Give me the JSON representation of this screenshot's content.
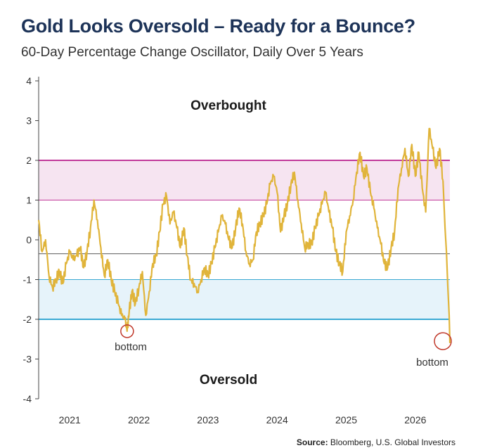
{
  "header": {
    "title": "Gold Looks Oversold – Ready for a Bounce?",
    "subtitle": "60-Day Percentage Change Oscillator, Daily Over 5 Years"
  },
  "footer": {
    "source_label": "Source:",
    "source_text": "Bloomberg, U.S. Global Investors"
  },
  "colors": {
    "series": "#e0b43a",
    "overbought_band_fill": "#f6e4f1",
    "overbought_line": "#c2399a",
    "oversold_band_fill": "#e6f3fa",
    "oversold_line": "#3aa9d3",
    "mean_line": "#555555",
    "marker": "#c0392b",
    "title": "#1d3358"
  },
  "chart_data": {
    "type": "line",
    "title": "Gold Looks Oversold – Ready for a Bounce?",
    "subtitle": "60-Day Percentage Change Oscillator, Daily Over 5 Years",
    "xlabel": "",
    "ylabel": "",
    "xlim": [
      2020.55,
      2026.5
    ],
    "ylim": [
      -4,
      4
    ],
    "x_ticks": [
      2021,
      2022,
      2023,
      2024,
      2025,
      2026
    ],
    "x_tick_labels": [
      "2021",
      "2022",
      "2023",
      "2024",
      "2025",
      "2026"
    ],
    "y_ticks": [
      -4,
      -3,
      -2,
      -1,
      0,
      1,
      2,
      3,
      4
    ],
    "y_tick_labels": [
      "-4",
      "-3",
      "-2",
      "-1",
      "0",
      "1",
      "2",
      "3",
      "4"
    ],
    "grid": false,
    "bands": [
      {
        "label": "Overbought",
        "from": 1,
        "to": 2
      },
      {
        "label": "Oversold",
        "from": -2,
        "to": -1
      }
    ],
    "reference_line": -0.35,
    "annotations": [
      {
        "text": "Overbought",
        "x": 2021.8,
        "y": 3.3
      },
      {
        "text": "Oversold",
        "x": 2022.75,
        "y": -3.5
      },
      {
        "text": "bottom",
        "x": 2021.83,
        "y": -2.3
      },
      {
        "text": "bottom",
        "x": 2026.35,
        "y": -2.55
      }
    ],
    "series": [
      {
        "x": [
          2020.55,
          2020.6,
          2020.65,
          2020.7,
          2020.75,
          2020.8,
          2020.85,
          2020.9,
          2020.95,
          2021.0,
          2021.05,
          2021.1,
          2021.15,
          2021.2,
          2021.25,
          2021.3,
          2021.35,
          2021.4,
          2021.45,
          2021.5,
          2021.55,
          2021.6,
          2021.65,
          2021.7,
          2021.75,
          2021.8,
          2021.83,
          2021.86,
          2021.9,
          2021.95,
          2022.0,
          2022.05,
          2022.1,
          2022.15,
          2022.2,
          2022.25,
          2022.3,
          2022.35,
          2022.4,
          2022.45,
          2022.5,
          2022.55,
          2022.6,
          2022.65,
          2022.7,
          2022.75,
          2022.8,
          2022.85,
          2022.9,
          2022.95,
          2023.0,
          2023.05,
          2023.1,
          2023.15,
          2023.2,
          2023.25,
          2023.3,
          2023.35,
          2023.4,
          2023.45,
          2023.5,
          2023.55,
          2023.6,
          2023.65,
          2023.7,
          2023.75,
          2023.8,
          2023.85,
          2023.9,
          2023.95,
          2024.0,
          2024.05,
          2024.1,
          2024.15,
          2024.2,
          2024.25,
          2024.3,
          2024.35,
          2024.4,
          2024.45,
          2024.5,
          2024.55,
          2024.6,
          2024.65,
          2024.7,
          2024.75,
          2024.8,
          2024.85,
          2024.9,
          2024.95,
          2025.0,
          2025.05,
          2025.1,
          2025.15,
          2025.2,
          2025.25,
          2025.3,
          2025.35,
          2025.4,
          2025.45,
          2025.5,
          2025.55,
          2025.6,
          2025.65,
          2025.7,
          2025.75,
          2025.8,
          2025.85,
          2025.9,
          2025.95,
          2026.0,
          2026.05,
          2026.1,
          2026.15,
          2026.2,
          2026.25,
          2026.3,
          2026.35,
          2026.4
        ],
        "y": [
          0.5,
          -0.3,
          0.0,
          -0.9,
          -1.2,
          -1.0,
          -0.8,
          -1.1,
          -0.6,
          -0.3,
          -0.5,
          -0.4,
          -0.2,
          -0.7,
          -0.3,
          0.3,
          1.0,
          0.5,
          -0.2,
          -0.9,
          -0.5,
          -1.0,
          -1.3,
          -1.6,
          -1.9,
          -2.0,
          -2.3,
          -1.8,
          -1.3,
          -1.6,
          -1.2,
          -0.8,
          -1.9,
          -1.3,
          -0.6,
          -0.4,
          0.2,
          0.9,
          1.1,
          0.4,
          0.7,
          0.3,
          -0.2,
          0.3,
          -0.4,
          -1.0,
          -1.1,
          -1.3,
          -1.0,
          -0.7,
          -0.9,
          -0.6,
          -0.2,
          0.2,
          0.6,
          0.4,
          0.0,
          -0.2,
          0.3,
          0.8,
          0.4,
          -0.3,
          -0.6,
          -0.5,
          0.2,
          0.4,
          0.6,
          0.9,
          1.4,
          1.6,
          1.2,
          0.2,
          0.6,
          0.9,
          1.4,
          1.7,
          1.0,
          0.4,
          -0.2,
          -0.1,
          -0.1,
          0.3,
          0.6,
          0.9,
          1.2,
          0.7,
          0.3,
          -0.3,
          -0.6,
          -0.8,
          0.2,
          0.6,
          1.0,
          1.7,
          2.2,
          1.6,
          1.8,
          1.2,
          0.8,
          0.3,
          -0.1,
          -0.6,
          -0.7,
          -0.2,
          0.2,
          1.3,
          1.8,
          2.3,
          1.6,
          2.4,
          1.6,
          2.2,
          1.3,
          0.7,
          2.8,
          2.3,
          1.8,
          2.3,
          1.5
        ]
      }
    ]
  }
}
